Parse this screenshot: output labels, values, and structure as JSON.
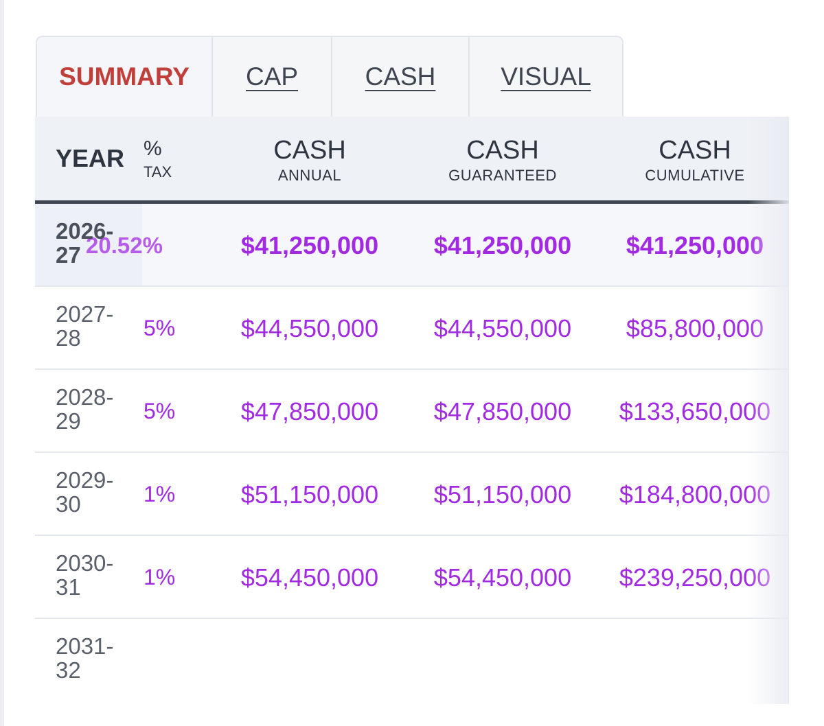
{
  "tabs": [
    {
      "label": "SUMMARY",
      "active": true
    },
    {
      "label": "CAP",
      "active": false
    },
    {
      "label": "CASH",
      "active": false
    },
    {
      "label": "VISUAL",
      "active": false
    }
  ],
  "header": {
    "year": "YEAR",
    "pct_main": "%",
    "pct_sub": "TAX",
    "col1_main": "CASH",
    "col1_sub": "ANNUAL",
    "col2_main": "CASH",
    "col2_sub": "GUARANTEED",
    "col3_main": "CASH",
    "col3_sub": "CUMULATIVE"
  },
  "rows": [
    {
      "year": "2026-27",
      "pct": "20.52%",
      "annual": "$41,250,000",
      "guaranteed": "$41,250,000",
      "cumulative": "$41,250,000"
    },
    {
      "year": "2027-28",
      "pct": "5%",
      "annual": "$44,550,000",
      "guaranteed": "$44,550,000",
      "cumulative": "$85,800,000"
    },
    {
      "year": "2028-29",
      "pct": "5%",
      "annual": "$47,850,000",
      "guaranteed": "$47,850,000",
      "cumulative": "$133,650,000"
    },
    {
      "year": "2029-30",
      "pct": "1%",
      "annual": "$51,150,000",
      "guaranteed": "$51,150,000",
      "cumulative": "$184,800,000"
    },
    {
      "year": "2030-31",
      "pct": "1%",
      "annual": "$54,450,000",
      "guaranteed": "$54,450,000",
      "cumulative": "$239,250,000"
    },
    {
      "year": "2031-32",
      "pct": "",
      "annual": "",
      "guaranteed": "",
      "cumulative": ""
    }
  ],
  "colors": {
    "active_tab": "#c13f3a",
    "money": "#a12ae2",
    "header_bg": "#eef1f6",
    "header_rule": "#3f4550"
  }
}
